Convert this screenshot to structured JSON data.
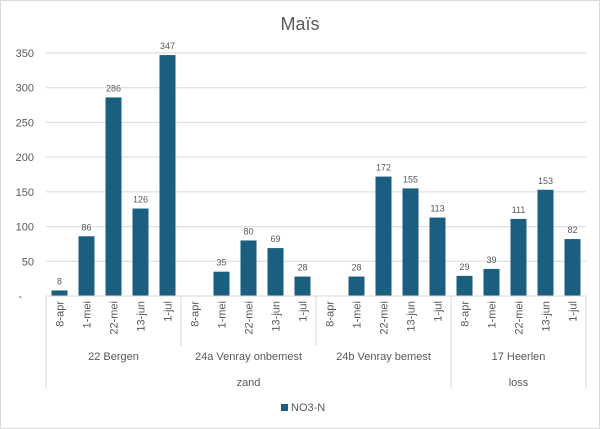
{
  "chart_data": {
    "type": "bar",
    "title": "Maïs",
    "ylim": [
      0,
      350
    ],
    "yticks": [
      0,
      50,
      100,
      150,
      200,
      250,
      300,
      350
    ],
    "ytick_labels": [
      "-",
      "50",
      "100",
      "150",
      "200",
      "250",
      "300",
      "350"
    ],
    "grid": true,
    "dates": [
      "8-apr",
      "1-mei",
      "22-mei",
      "13-jun",
      "1-jul"
    ],
    "sites": [
      "22 Bergen",
      "24a Venray onbemest",
      "24b Venray bemest",
      "17 Heerlen"
    ],
    "soil_groups": [
      {
        "label": "zand",
        "sites": 3
      },
      {
        "label": "loss",
        "sites": 1
      }
    ],
    "series": [
      {
        "name": "NO3-N",
        "color": "#1a5e80",
        "values": [
          [
            8,
            86,
            286,
            126,
            347
          ],
          [
            null,
            35,
            80,
            69,
            28
          ],
          [
            null,
            28,
            172,
            155,
            113
          ],
          [
            29,
            39,
            111,
            153,
            82
          ]
        ]
      }
    ],
    "legend": "bottom"
  }
}
